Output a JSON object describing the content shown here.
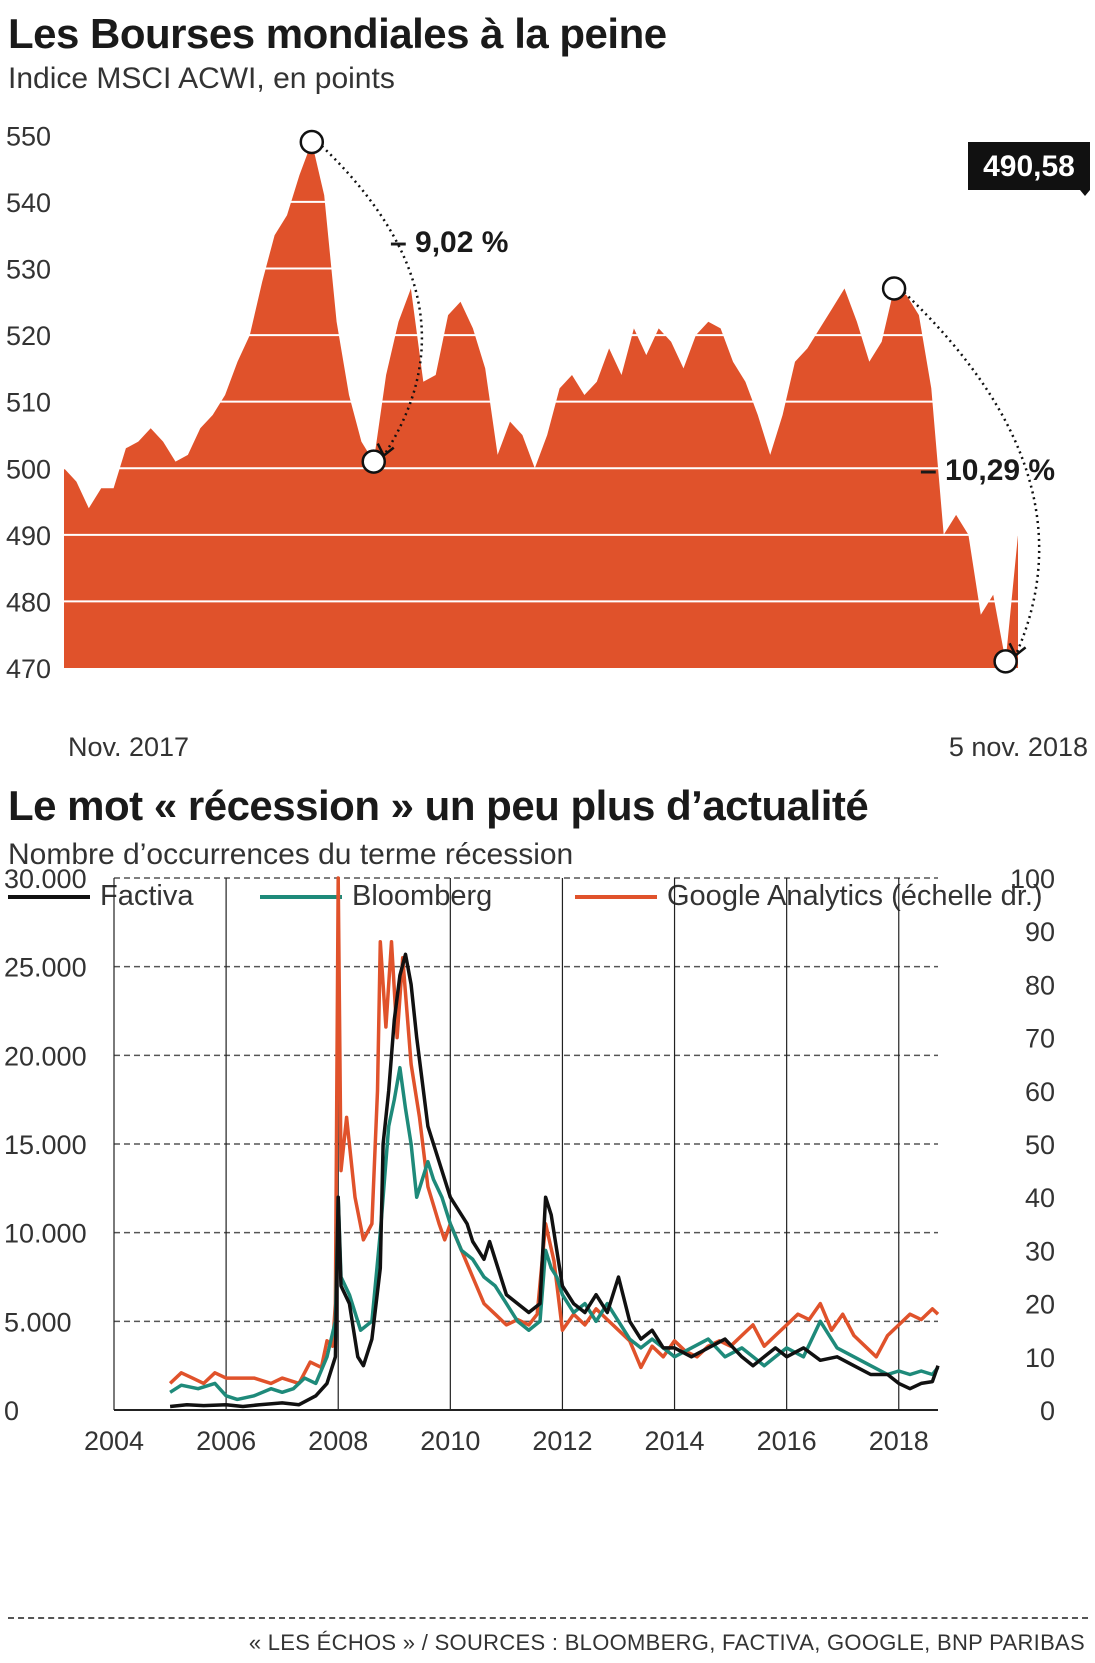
{
  "colors": {
    "area": "#e0522b",
    "factiva": "#111111",
    "bloomberg": "#1e8a7a",
    "google": "#e0522b",
    "grid": "#555555"
  },
  "chart1": {
    "title": "Les Bourses mondiales à la peine",
    "subtitle": "Indice MSCI ACWI, en points",
    "last_label": "490,58",
    "callouts": [
      "– 9,02 %",
      "– 10,29 %"
    ],
    "x_start_label": "Nov. 2017",
    "x_end_label": "5 nov. 2018"
  },
  "chart2": {
    "title": "Le mot « récession » un peu plus d’actualité",
    "subtitle": "Nombre d’occurrences du terme récession",
    "legend": [
      "Factiva",
      "Bloomberg",
      "Google Analytics (échelle dr.)"
    ]
  },
  "source": "« LES ÉCHOS » / SOURCES : BLOOMBERG, FACTIVA, GOOGLE, BNP PARIBAS",
  "chart_data": [
    {
      "type": "area",
      "title": "Les Bourses mondiales à la peine",
      "subtitle": "Indice MSCI ACWI, en points",
      "xlabel": "",
      "ylabel": "",
      "x_range": [
        "Nov. 2017",
        "5 nov. 2018"
      ],
      "ylim": [
        470,
        553
      ],
      "y_ticks": [
        470,
        480,
        490,
        500,
        510,
        520,
        530,
        540,
        550
      ],
      "series": [
        {
          "values": [
            500,
            498,
            494,
            497,
            497,
            503,
            504,
            506,
            504,
            501,
            502,
            506,
            508,
            511,
            516,
            520,
            528,
            535,
            538,
            544,
            549,
            541,
            522,
            511,
            504,
            501,
            514,
            522,
            527,
            513,
            514,
            523,
            525,
            521,
            515,
            502,
            507,
            505,
            500,
            505,
            512,
            514,
            511,
            513,
            518,
            514,
            521,
            517,
            521,
            519,
            515,
            520,
            522,
            521,
            516,
            513,
            508,
            502,
            508,
            516,
            518,
            521,
            524,
            527,
            522,
            516,
            519,
            527,
            526,
            523,
            512,
            490,
            493,
            490,
            478,
            481,
            471,
            490
          ]
        }
      ],
      "last_value": 490.58,
      "annotations": [
        {
          "text": "– 9,02 %",
          "from": 549.5,
          "to": 500.5
        },
        {
          "text": "– 10,29 %",
          "from": 527.5,
          "to": 471.5
        }
      ]
    },
    {
      "type": "line",
      "title": "Le mot « récession » un peu plus d’actualité",
      "subtitle": "Nombre d’occurrences du terme récession",
      "x_ticks": [
        2004,
        2006,
        2008,
        2010,
        2012,
        2014,
        2016,
        2018
      ],
      "xlim": [
        2004,
        2018.7
      ],
      "y_left": {
        "ticks": [
          0,
          5000,
          10000,
          15000,
          20000,
          25000,
          30000
        ],
        "labels": [
          "0",
          "5.000",
          "10.000",
          "15.000",
          "20.000",
          "25.000",
          "30.000"
        ],
        "lim": [
          0,
          30000
        ]
      },
      "y_right": {
        "ticks": [
          0,
          10,
          20,
          30,
          40,
          50,
          60,
          70,
          80,
          90,
          100
        ],
        "lim": [
          0,
          100
        ]
      },
      "grid": true,
      "legend_position": "top",
      "series": [
        {
          "name": "Factiva",
          "axis": "left",
          "points": [
            [
              2005.0,
              200
            ],
            [
              2005.3,
              300
            ],
            [
              2005.6,
              250
            ],
            [
              2006.0,
              300
            ],
            [
              2006.3,
              200
            ],
            [
              2006.6,
              300
            ],
            [
              2007.0,
              400
            ],
            [
              2007.3,
              300
            ],
            [
              2007.6,
              800
            ],
            [
              2007.8,
              1500
            ],
            [
              2007.95,
              3000
            ],
            [
              2008.0,
              12000
            ],
            [
              2008.05,
              7000
            ],
            [
              2008.2,
              6000
            ],
            [
              2008.35,
              3000
            ],
            [
              2008.45,
              2500
            ],
            [
              2008.6,
              4000
            ],
            [
              2008.75,
              8000
            ],
            [
              2008.8,
              15000
            ],
            [
              2008.9,
              18000
            ],
            [
              2009.0,
              22000
            ],
            [
              2009.1,
              24500
            ],
            [
              2009.2,
              25700
            ],
            [
              2009.3,
              24000
            ],
            [
              2009.4,
              21000
            ],
            [
              2009.5,
              18500
            ],
            [
              2009.6,
              16000
            ],
            [
              2009.8,
              14000
            ],
            [
              2010.0,
              12000
            ],
            [
              2010.2,
              11000
            ],
            [
              2010.3,
              10500
            ],
            [
              2010.4,
              9500
            ],
            [
              2010.5,
              9000
            ],
            [
              2010.6,
              8500
            ],
            [
              2010.7,
              9500
            ],
            [
              2010.8,
              8500
            ],
            [
              2011.0,
              6500
            ],
            [
              2011.2,
              6000
            ],
            [
              2011.4,
              5500
            ],
            [
              2011.6,
              6000
            ],
            [
              2011.7,
              12000
            ],
            [
              2011.8,
              11000
            ],
            [
              2011.9,
              9000
            ],
            [
              2012.0,
              7000
            ],
            [
              2012.2,
              6000
            ],
            [
              2012.4,
              5500
            ],
            [
              2012.6,
              6500
            ],
            [
              2012.8,
              5500
            ],
            [
              2013.0,
              7500
            ],
            [
              2013.2,
              5000
            ],
            [
              2013.4,
              4000
            ],
            [
              2013.6,
              4500
            ],
            [
              2013.8,
              3500
            ],
            [
              2014.0,
              3500
            ],
            [
              2014.3,
              3000
            ],
            [
              2014.6,
              3500
            ],
            [
              2014.9,
              4000
            ],
            [
              2015.2,
              3000
            ],
            [
              2015.4,
              2500
            ],
            [
              2015.6,
              3000
            ],
            [
              2015.8,
              3500
            ],
            [
              2016.0,
              3000
            ],
            [
              2016.3,
              3500
            ],
            [
              2016.6,
              2800
            ],
            [
              2016.9,
              3000
            ],
            [
              2017.2,
              2500
            ],
            [
              2017.5,
              2000
            ],
            [
              2017.8,
              2000
            ],
            [
              2018.0,
              1500
            ],
            [
              2018.2,
              1200
            ],
            [
              2018.4,
              1500
            ],
            [
              2018.6,
              1600
            ],
            [
              2018.7,
              2500
            ]
          ]
        },
        {
          "name": "Bloomberg",
          "axis": "left",
          "points": [
            [
              2005.0,
              1000
            ],
            [
              2005.2,
              1400
            ],
            [
              2005.5,
              1200
            ],
            [
              2005.8,
              1500
            ],
            [
              2006.0,
              800
            ],
            [
              2006.2,
              600
            ],
            [
              2006.5,
              800
            ],
            [
              2006.8,
              1200
            ],
            [
              2007.0,
              1000
            ],
            [
              2007.2,
              1200
            ],
            [
              2007.4,
              1800
            ],
            [
              2007.6,
              1500
            ],
            [
              2007.8,
              3000
            ],
            [
              2007.95,
              5000
            ],
            [
              2008.0,
              12000
            ],
            [
              2008.05,
              7500
            ],
            [
              2008.2,
              6500
            ],
            [
              2008.4,
              4500
            ],
            [
              2008.6,
              5000
            ],
            [
              2008.75,
              10000
            ],
            [
              2008.9,
              16000
            ],
            [
              2009.0,
              17500
            ],
            [
              2009.1,
              19300
            ],
            [
              2009.2,
              17000
            ],
            [
              2009.3,
              15000
            ],
            [
              2009.4,
              12000
            ],
            [
              2009.6,
              14000
            ],
            [
              2009.7,
              13000
            ],
            [
              2009.85,
              12000
            ],
            [
              2010.0,
              10500
            ],
            [
              2010.2,
              9000
            ],
            [
              2010.4,
              8500
            ],
            [
              2010.6,
              7500
            ],
            [
              2010.8,
              7000
            ],
            [
              2011.0,
              6000
            ],
            [
              2011.2,
              5000
            ],
            [
              2011.4,
              4500
            ],
            [
              2011.6,
              5000
            ],
            [
              2011.7,
              9000
            ],
            [
              2011.8,
              8000
            ],
            [
              2011.9,
              7500
            ],
            [
              2012.0,
              6500
            ],
            [
              2012.2,
              5500
            ],
            [
              2012.4,
              6000
            ],
            [
              2012.6,
              5000
            ],
            [
              2012.8,
              6000
            ],
            [
              2013.0,
              5000
            ],
            [
              2013.2,
              4000
            ],
            [
              2013.4,
              3500
            ],
            [
              2013.6,
              4000
            ],
            [
              2013.8,
              3500
            ],
            [
              2014.0,
              3000
            ],
            [
              2014.3,
              3500
            ],
            [
              2014.6,
              4000
            ],
            [
              2014.9,
              3000
            ],
            [
              2015.2,
              3500
            ],
            [
              2015.4,
              3000
            ],
            [
              2015.6,
              2500
            ],
            [
              2015.8,
              3000
            ],
            [
              2016.0,
              3500
            ],
            [
              2016.3,
              3000
            ],
            [
              2016.6,
              5000
            ],
            [
              2016.9,
              3500
            ],
            [
              2017.2,
              3000
            ],
            [
              2017.5,
              2500
            ],
            [
              2017.8,
              2000
            ],
            [
              2018.0,
              2200
            ],
            [
              2018.2,
              2000
            ],
            [
              2018.4,
              2200
            ],
            [
              2018.6,
              2000
            ],
            [
              2018.7,
              2400
            ]
          ]
        },
        {
          "name": "Google Analytics (échelle dr.)",
          "axis": "right",
          "points": [
            [
              2005.0,
              5
            ],
            [
              2005.2,
              7
            ],
            [
              2005.4,
              6
            ],
            [
              2005.6,
              5
            ],
            [
              2005.8,
              7
            ],
            [
              2006.0,
              6
            ],
            [
              2006.2,
              6
            ],
            [
              2006.5,
              6
            ],
            [
              2006.8,
              5
            ],
            [
              2007.0,
              6
            ],
            [
              2007.3,
              5
            ],
            [
              2007.5,
              9
            ],
            [
              2007.7,
              8
            ],
            [
              2007.8,
              13
            ],
            [
              2007.9,
              12
            ],
            [
              2007.95,
              20
            ],
            [
              2008.0,
              100
            ],
            [
              2008.05,
              45
            ],
            [
              2008.15,
              55
            ],
            [
              2008.3,
              40
            ],
            [
              2008.45,
              32
            ],
            [
              2008.6,
              35
            ],
            [
              2008.7,
              60
            ],
            [
              2008.75,
              88
            ],
            [
              2008.85,
              72
            ],
            [
              2008.95,
              88
            ],
            [
              2009.05,
              70
            ],
            [
              2009.15,
              85
            ],
            [
              2009.3,
              65
            ],
            [
              2009.45,
              55
            ],
            [
              2009.6,
              42
            ],
            [
              2009.8,
              35
            ],
            [
              2009.9,
              32
            ],
            [
              2010.0,
              35
            ],
            [
              2010.2,
              30
            ],
            [
              2010.4,
              25
            ],
            [
              2010.6,
              20
            ],
            [
              2010.8,
              18
            ],
            [
              2011.0,
              16
            ],
            [
              2011.2,
              17
            ],
            [
              2011.4,
              16
            ],
            [
              2011.55,
              18
            ],
            [
              2011.7,
              35
            ],
            [
              2011.85,
              28
            ],
            [
              2012.0,
              15
            ],
            [
              2012.2,
              18
            ],
            [
              2012.4,
              16
            ],
            [
              2012.6,
              19
            ],
            [
              2012.8,
              17
            ],
            [
              2013.0,
              15
            ],
            [
              2013.2,
              13
            ],
            [
              2013.4,
              8
            ],
            [
              2013.6,
              12
            ],
            [
              2013.8,
              10
            ],
            [
              2014.0,
              13
            ],
            [
              2014.2,
              11
            ],
            [
              2014.4,
              10
            ],
            [
              2014.6,
              12
            ],
            [
              2014.8,
              13
            ],
            [
              2015.0,
              12
            ],
            [
              2015.2,
              14
            ],
            [
              2015.4,
              16
            ],
            [
              2015.6,
              12
            ],
            [
              2015.8,
              14
            ],
            [
              2016.0,
              16
            ],
            [
              2016.2,
              18
            ],
            [
              2016.4,
              17
            ],
            [
              2016.6,
              20
            ],
            [
              2016.8,
              15
            ],
            [
              2017.0,
              18
            ],
            [
              2017.2,
              14
            ],
            [
              2017.4,
              12
            ],
            [
              2017.6,
              10
            ],
            [
              2017.8,
              14
            ],
            [
              2018.0,
              16
            ],
            [
              2018.2,
              18
            ],
            [
              2018.4,
              17
            ],
            [
              2018.6,
              19
            ],
            [
              2018.7,
              18
            ]
          ]
        }
      ]
    }
  ]
}
